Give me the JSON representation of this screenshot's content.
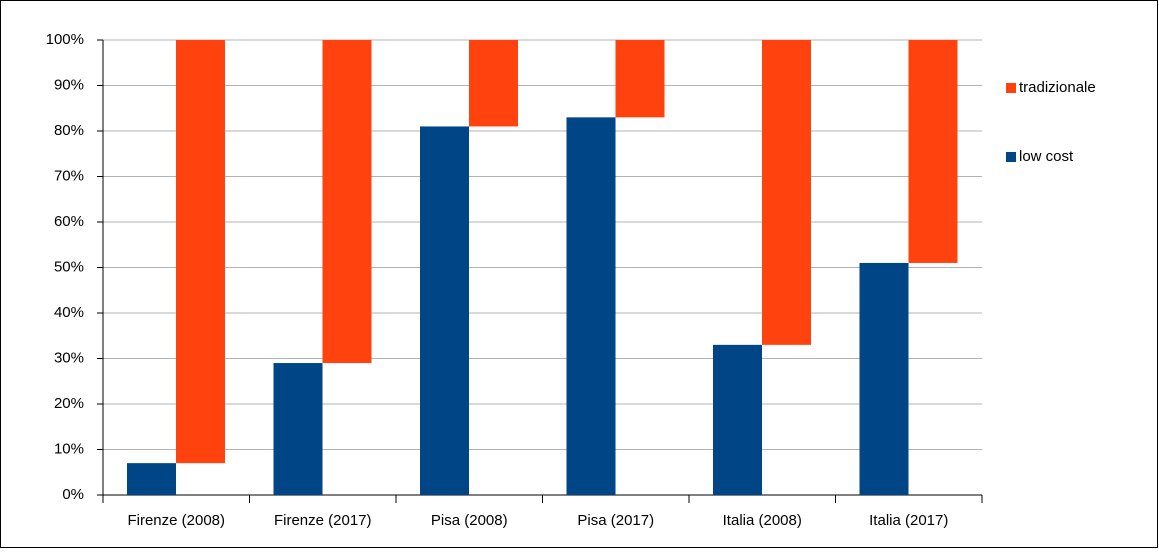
{
  "chart_data": {
    "type": "bar",
    "categories": [
      "Firenze (2008)",
      "Firenze (2017)",
      "Pisa (2008)",
      "Pisa (2017)",
      "Italia (2008)",
      "Italia (2017)"
    ],
    "series": [
      {
        "name": "low cost",
        "color": "#004586",
        "values": [
          7,
          29,
          81,
          83,
          33,
          51
        ]
      },
      {
        "name": "tradizionale",
        "color": "#ff420e",
        "values": [
          93,
          71,
          19,
          17,
          67,
          49
        ]
      }
    ],
    "ylim": [
      0,
      100
    ],
    "yticks": [
      {
        "value": 0,
        "label": "0%"
      },
      {
        "value": 10,
        "label": "10%"
      },
      {
        "value": 20,
        "label": "20%"
      },
      {
        "value": 30,
        "label": "30%"
      },
      {
        "value": 40,
        "label": "40%"
      },
      {
        "value": 50,
        "label": "50%"
      },
      {
        "value": 60,
        "label": "60%"
      },
      {
        "value": 70,
        "label": "70%"
      },
      {
        "value": 80,
        "label": "80%"
      },
      {
        "value": 90,
        "label": "90%"
      },
      {
        "value": 100,
        "label": "100%"
      }
    ],
    "grid": true,
    "legend": "right"
  }
}
